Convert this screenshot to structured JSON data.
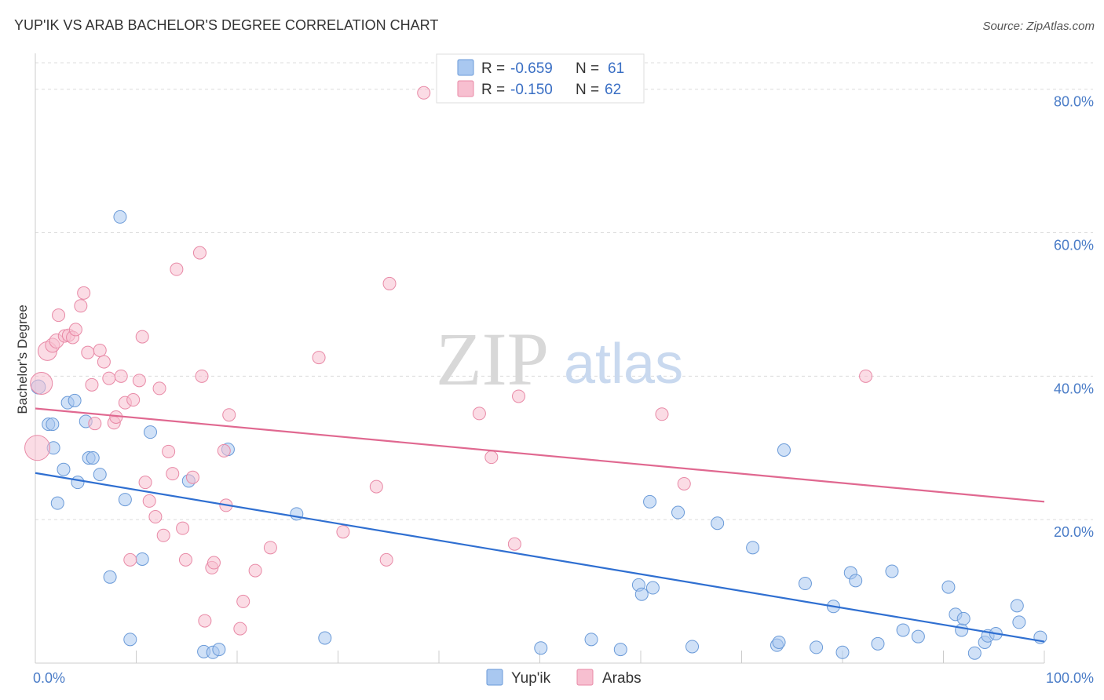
{
  "title": "YUP'IK VS ARAB BACHELOR'S DEGREE CORRELATION CHART",
  "source": "Source: ZipAtlas.com",
  "watermark": {
    "zip": "ZIP",
    "atlas": "atlas"
  },
  "legend": {
    "rows": [
      {
        "r_label": "R =",
        "r_value": "-0.659",
        "n_label": "N =",
        "n_value": "61",
        "color": "#a9c8f0",
        "stroke": "#6a9ad8"
      },
      {
        "r_label": "R =",
        "r_value": "-0.150",
        "n_label": "N =",
        "n_value": "62",
        "color": "#f7bfd0",
        "stroke": "#e889a6"
      }
    ]
  },
  "bottom_legend": [
    {
      "label": "Yup'ik",
      "color": "#a9c8f0",
      "stroke": "#6a9ad8"
    },
    {
      "label": "Arabs",
      "color": "#f7bfd0",
      "stroke": "#e889a6"
    }
  ],
  "chart_data": {
    "type": "scatter",
    "title": "YUP'IK VS ARAB BACHELOR'S DEGREE CORRELATION CHART",
    "xlabel": "",
    "ylabel": "Bachelor's Degree",
    "xlim": [
      0,
      100
    ],
    "ylim": [
      0,
      85
    ],
    "x_tick_labels": [
      {
        "value": 0,
        "label": "0.0%"
      },
      {
        "value": 100,
        "label": "100.0%"
      }
    ],
    "y_tick_labels": [
      {
        "value": 20,
        "label": "20.0%"
      },
      {
        "value": 40,
        "label": "40.0%"
      },
      {
        "value": 60,
        "label": "60.0%"
      },
      {
        "value": 80,
        "label": "80.0%"
      }
    ],
    "grid": true,
    "legend_position": "top-center",
    "series": [
      {
        "name": "Yup'ik",
        "color": "#a9c8f0",
        "stroke": "#6a9ad8",
        "line_color": "#2f6fd1",
        "trend": [
          [
            0,
            26.5
          ],
          [
            100,
            3.0
          ]
        ],
        "points": [
          [
            0.3,
            38.5,
            9
          ],
          [
            1.3,
            33.3,
            8
          ],
          [
            1.7,
            33.3,
            8
          ],
          [
            1.8,
            30.0,
            8
          ],
          [
            2.2,
            22.3,
            8
          ],
          [
            2.8,
            27.0,
            8
          ],
          [
            3.2,
            36.3,
            8
          ],
          [
            3.9,
            36.6,
            8
          ],
          [
            4.2,
            25.2,
            8
          ],
          [
            5.0,
            33.7,
            8
          ],
          [
            5.3,
            28.6,
            8
          ],
          [
            5.7,
            28.6,
            8
          ],
          [
            6.4,
            26.3,
            8
          ],
          [
            7.4,
            12.0,
            8
          ],
          [
            8.4,
            62.2,
            8
          ],
          [
            8.9,
            22.8,
            8
          ],
          [
            9.4,
            3.3,
            8
          ],
          [
            10.6,
            14.5,
            8
          ],
          [
            11.4,
            32.2,
            8
          ],
          [
            15.2,
            25.4,
            8
          ],
          [
            16.7,
            1.6,
            8
          ],
          [
            17.6,
            1.5,
            8
          ],
          [
            18.2,
            1.9,
            8
          ],
          [
            19.1,
            29.8,
            8
          ],
          [
            25.9,
            20.8,
            8
          ],
          [
            28.7,
            3.5,
            8
          ],
          [
            50.1,
            2.1,
            8
          ],
          [
            55.1,
            3.3,
            8
          ],
          [
            58.0,
            1.9,
            8
          ],
          [
            59.8,
            10.9,
            8
          ],
          [
            60.1,
            9.6,
            8
          ],
          [
            61.2,
            10.5,
            8
          ],
          [
            60.9,
            22.5,
            8
          ],
          [
            63.7,
            21.0,
            8
          ],
          [
            65.1,
            2.3,
            8
          ],
          [
            67.6,
            19.5,
            8
          ],
          [
            71.1,
            16.1,
            8
          ],
          [
            73.5,
            2.5,
            8
          ],
          [
            73.7,
            2.9,
            8
          ],
          [
            74.2,
            29.7,
            8
          ],
          [
            76.3,
            11.1,
            8
          ],
          [
            77.4,
            2.2,
            8
          ],
          [
            79.1,
            7.9,
            8
          ],
          [
            80.0,
            1.5,
            8
          ],
          [
            80.8,
            12.6,
            8
          ],
          [
            81.3,
            11.5,
            8
          ],
          [
            83.5,
            2.7,
            8
          ],
          [
            84.9,
            12.8,
            8
          ],
          [
            86.0,
            4.6,
            8
          ],
          [
            87.5,
            3.7,
            8
          ],
          [
            90.5,
            10.6,
            8
          ],
          [
            91.2,
            6.8,
            8
          ],
          [
            91.8,
            4.6,
            8
          ],
          [
            92.0,
            6.2,
            8
          ],
          [
            93.1,
            1.4,
            8
          ],
          [
            94.1,
            2.9,
            8
          ],
          [
            94.4,
            3.8,
            8
          ],
          [
            95.2,
            4.1,
            8
          ],
          [
            97.3,
            8.0,
            8
          ],
          [
            97.5,
            5.7,
            8
          ],
          [
            99.6,
            3.6,
            8
          ]
        ]
      },
      {
        "name": "Arabs",
        "color": "#f7bfd0",
        "stroke": "#e889a6",
        "line_color": "#e06890",
        "trend": [
          [
            0,
            35.5
          ],
          [
            100,
            22.5
          ]
        ],
        "points": [
          [
            0.2,
            30.0,
            16
          ],
          [
            0.6,
            39.0,
            14
          ],
          [
            1.2,
            43.5,
            12
          ],
          [
            1.7,
            44.3,
            9
          ],
          [
            2.1,
            44.9,
            9
          ],
          [
            2.3,
            48.5,
            8
          ],
          [
            2.9,
            45.6,
            8
          ],
          [
            3.3,
            45.7,
            8
          ],
          [
            3.7,
            45.4,
            8
          ],
          [
            4.0,
            46.5,
            8
          ],
          [
            4.5,
            49.8,
            8
          ],
          [
            4.8,
            51.6,
            8
          ],
          [
            5.2,
            43.3,
            8
          ],
          [
            5.6,
            38.8,
            8
          ],
          [
            5.9,
            33.4,
            8
          ],
          [
            6.4,
            43.6,
            8
          ],
          [
            6.8,
            42.0,
            8
          ],
          [
            7.3,
            39.7,
            8
          ],
          [
            7.8,
            33.5,
            8
          ],
          [
            8.0,
            34.3,
            8
          ],
          [
            8.5,
            40.0,
            8
          ],
          [
            8.9,
            36.3,
            8
          ],
          [
            9.4,
            14.4,
            8
          ],
          [
            9.7,
            36.7,
            8
          ],
          [
            10.3,
            39.4,
            8
          ],
          [
            10.6,
            45.5,
            8
          ],
          [
            10.9,
            25.2,
            8
          ],
          [
            11.3,
            22.6,
            8
          ],
          [
            11.9,
            20.4,
            8
          ],
          [
            12.3,
            38.3,
            8
          ],
          [
            12.7,
            17.8,
            8
          ],
          [
            13.2,
            29.5,
            8
          ],
          [
            13.6,
            26.4,
            8
          ],
          [
            14.0,
            54.9,
            8
          ],
          [
            14.6,
            18.8,
            8
          ],
          [
            14.9,
            14.4,
            8
          ],
          [
            15.6,
            25.9,
            8
          ],
          [
            16.3,
            57.2,
            8
          ],
          [
            16.5,
            40.0,
            8
          ],
          [
            16.8,
            5.9,
            8
          ],
          [
            17.5,
            13.3,
            8
          ],
          [
            17.7,
            14.0,
            8
          ],
          [
            18.7,
            29.6,
            8
          ],
          [
            18.9,
            22.0,
            8
          ],
          [
            19.2,
            34.6,
            8
          ],
          [
            20.3,
            4.8,
            8
          ],
          [
            20.6,
            8.6,
            8
          ],
          [
            21.8,
            12.9,
            8
          ],
          [
            23.3,
            16.1,
            8
          ],
          [
            28.1,
            42.6,
            8
          ],
          [
            30.5,
            18.3,
            8
          ],
          [
            35.1,
            52.9,
            8
          ],
          [
            33.8,
            24.6,
            8
          ],
          [
            34.8,
            14.4,
            8
          ],
          [
            38.5,
            79.5,
            8
          ],
          [
            44.0,
            34.8,
            8
          ],
          [
            45.2,
            28.7,
            8
          ],
          [
            47.5,
            16.6,
            8
          ],
          [
            47.9,
            37.2,
            8
          ],
          [
            62.1,
            34.7,
            8
          ],
          [
            64.3,
            25.0,
            8
          ],
          [
            82.3,
            40.0,
            8
          ]
        ]
      }
    ]
  }
}
